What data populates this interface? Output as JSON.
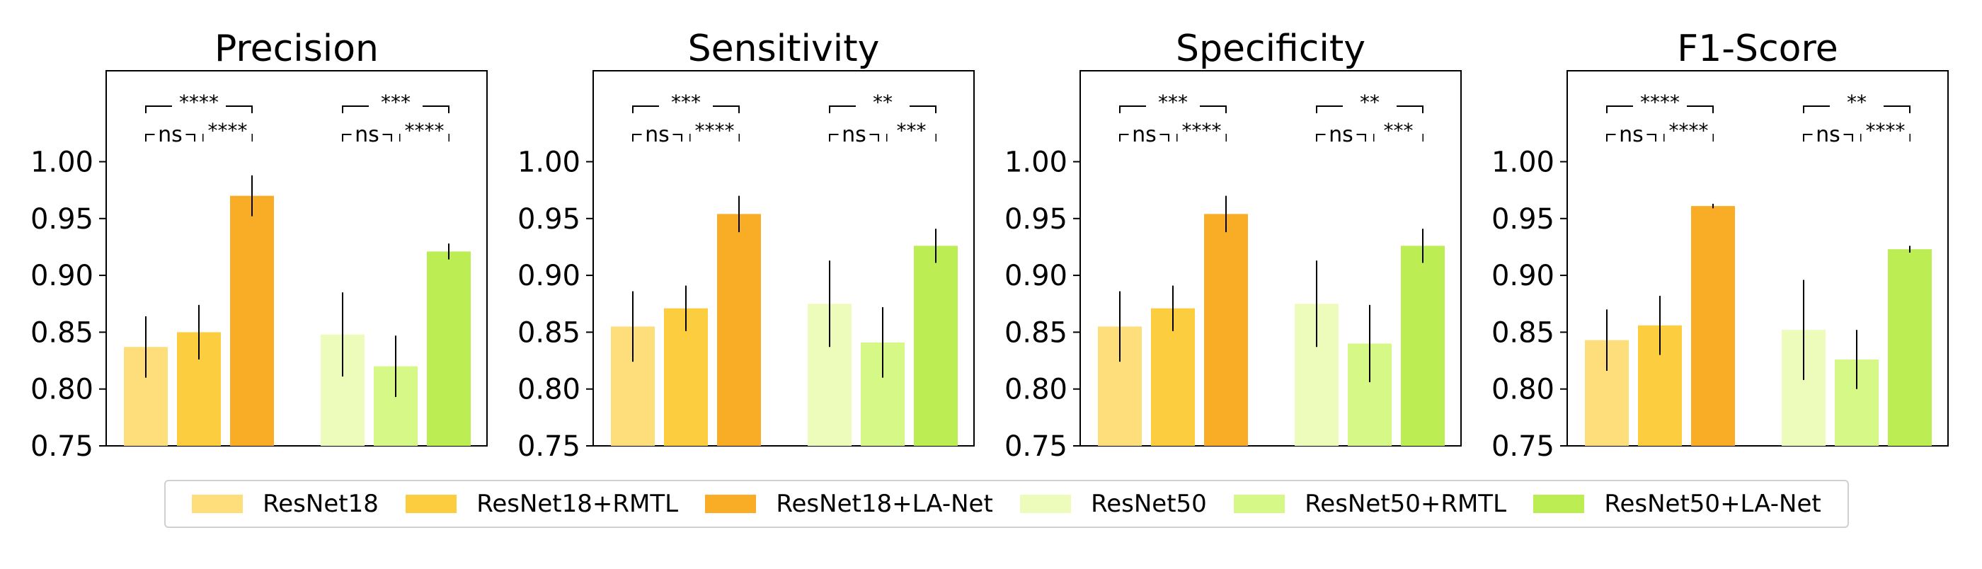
{
  "chart_data": [
    {
      "type": "bar",
      "title": "Precision",
      "series": [
        {
          "name": "ResNet18",
          "value": 0.837,
          "err": 0.027
        },
        {
          "name": "ResNet18+RMTL",
          "value": 0.85,
          "err": 0.024
        },
        {
          "name": "ResNet18+LA-Net",
          "value": 0.97,
          "err": 0.018
        },
        {
          "name": "ResNet50",
          "value": 0.848,
          "err": 0.037
        },
        {
          "name": "ResNet50+RMTL",
          "value": 0.82,
          "err": 0.027
        },
        {
          "name": "ResNet50+LA-Net",
          "value": 0.921,
          "err": 0.007
        }
      ],
      "annotations": {
        "group1": {
          "outer": "****",
          "inner_left": "ns",
          "inner_right": "****"
        },
        "group2": {
          "outer": "***",
          "inner_left": "ns",
          "inner_right": "****"
        }
      }
    },
    {
      "type": "bar",
      "title": "Sensitivity",
      "series": [
        {
          "name": "ResNet18",
          "value": 0.855,
          "err": 0.031
        },
        {
          "name": "ResNet18+RMTL",
          "value": 0.871,
          "err": 0.02
        },
        {
          "name": "ResNet18+LA-Net",
          "value": 0.954,
          "err": 0.016
        },
        {
          "name": "ResNet50",
          "value": 0.875,
          "err": 0.038
        },
        {
          "name": "ResNet50+RMTL",
          "value": 0.841,
          "err": 0.031
        },
        {
          "name": "ResNet50+LA-Net",
          "value": 0.926,
          "err": 0.015
        }
      ],
      "annotations": {
        "group1": {
          "outer": "***",
          "inner_left": "ns",
          "inner_right": "****"
        },
        "group2": {
          "outer": "**",
          "inner_left": "ns",
          "inner_right": "***"
        }
      }
    },
    {
      "type": "bar",
      "title": "Specificity",
      "series": [
        {
          "name": "ResNet18",
          "value": 0.855,
          "err": 0.031
        },
        {
          "name": "ResNet18+RMTL",
          "value": 0.871,
          "err": 0.02
        },
        {
          "name": "ResNet18+LA-Net",
          "value": 0.954,
          "err": 0.016
        },
        {
          "name": "ResNet50",
          "value": 0.875,
          "err": 0.038
        },
        {
          "name": "ResNet50+RMTL",
          "value": 0.84,
          "err": 0.034
        },
        {
          "name": "ResNet50+LA-Net",
          "value": 0.926,
          "err": 0.015
        }
      ],
      "annotations": {
        "group1": {
          "outer": "***",
          "inner_left": "ns",
          "inner_right": "****"
        },
        "group2": {
          "outer": "**",
          "inner_left": "ns",
          "inner_right": "***"
        }
      }
    },
    {
      "type": "bar",
      "title": "F1-Score",
      "series": [
        {
          "name": "ResNet18",
          "value": 0.843,
          "err": 0.027
        },
        {
          "name": "ResNet18+RMTL",
          "value": 0.856,
          "err": 0.026
        },
        {
          "name": "ResNet18+LA-Net",
          "value": 0.961,
          "err": 0.002
        },
        {
          "name": "ResNet50",
          "value": 0.852,
          "err": 0.044
        },
        {
          "name": "ResNet50+RMTL",
          "value": 0.826,
          "err": 0.026
        },
        {
          "name": "ResNet50+LA-Net",
          "value": 0.923,
          "err": 0.003
        }
      ],
      "annotations": {
        "group1": {
          "outer": "****",
          "inner_left": "ns",
          "inner_right": "****"
        },
        "group2": {
          "outer": "**",
          "inner_left": "ns",
          "inner_right": "****"
        }
      }
    }
  ],
  "axis": {
    "ylim": [
      0.75,
      1.08
    ],
    "yticks": [
      "0.75",
      "0.80",
      "0.85",
      "0.90",
      "0.95",
      "1.00"
    ],
    "ytick_values": [
      0.75,
      0.8,
      0.85,
      0.9,
      0.95,
      1.0
    ],
    "grid": false
  },
  "colors": [
    "#fedd7b",
    "#fdcd40",
    "#f9ad27",
    "#eefcbb",
    "#d5f886",
    "#bced53"
  ],
  "legend": {
    "placement": "bottom",
    "items": [
      "ResNet18",
      "ResNet18+RMTL",
      "ResNet18+LA-Net",
      "ResNet50",
      "ResNet50+RMTL",
      "ResNet50+LA-Net"
    ]
  }
}
